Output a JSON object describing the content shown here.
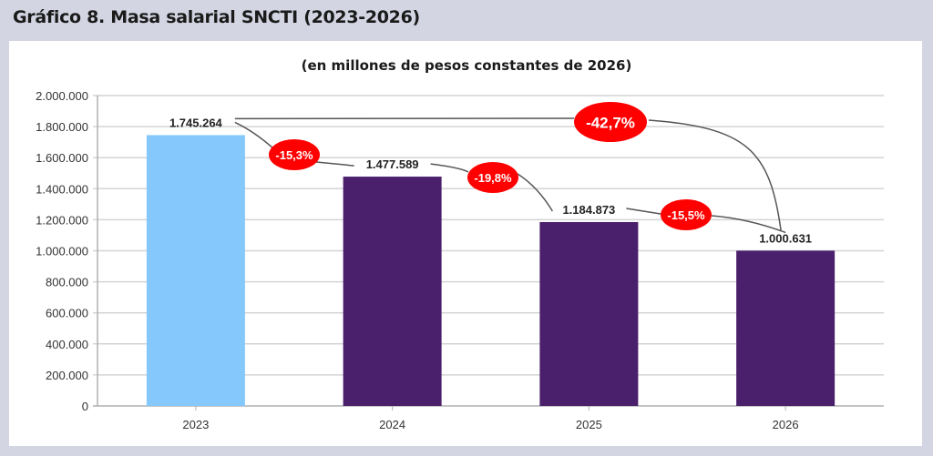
{
  "header": {
    "title": "Gráfico 8. Masa salarial SNCTI (2023-2026)"
  },
  "chart_data": {
    "type": "bar",
    "title": "Gráfico 8. Masa salarial SNCTI (2023-2026)",
    "subtitle": "(en millones de pesos constantes de 2026)",
    "categories": [
      "2023",
      "2024",
      "2025",
      "2026"
    ],
    "values": [
      1745264,
      1477589,
      1184873,
      1000631
    ],
    "data_labels": [
      "1.745.264",
      "1.477.589",
      "1.184.873",
      "1.000.631"
    ],
    "bar_colors": [
      "#85c8fb",
      "#4a1f6b",
      "#4a1f6b",
      "#4a1f6b"
    ],
    "ylim": [
      0,
      2000000
    ],
    "yticks": [
      0,
      200000,
      400000,
      600000,
      800000,
      1000000,
      1200000,
      1400000,
      1600000,
      1800000,
      2000000
    ],
    "ytick_labels": [
      "0",
      "200.000",
      "400.000",
      "600.000",
      "800.000",
      "1.000.000",
      "1.200.000",
      "1.400.000",
      "1.600.000",
      "1.800.000",
      "2.000.000"
    ],
    "grid": true,
    "annotations": [
      {
        "from": "2023",
        "to": "2024",
        "label": "-15,3%"
      },
      {
        "from": "2024",
        "to": "2025",
        "label": "-19,8%"
      },
      {
        "from": "2025",
        "to": "2026",
        "label": "-15,5%"
      },
      {
        "from": "2023",
        "to": "2026",
        "label": "-42,7%"
      }
    ],
    "annotation_color": "#ff0000"
  }
}
